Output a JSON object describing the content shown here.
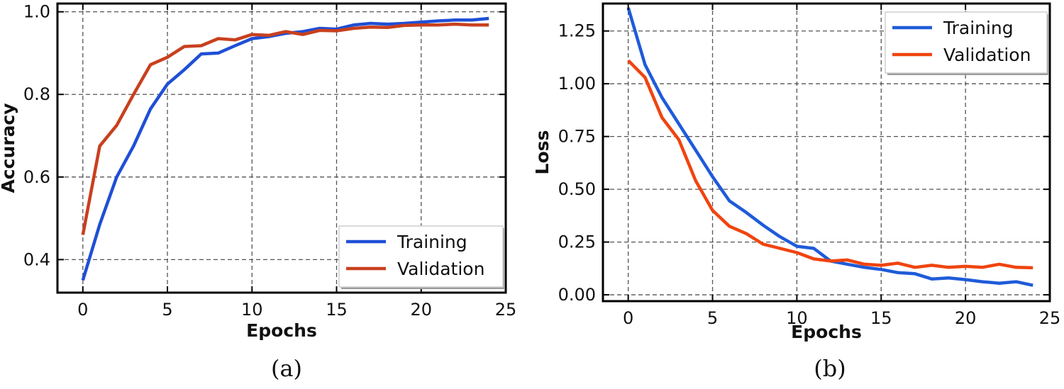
{
  "chart_data": [
    {
      "type": "line",
      "panel": "(a)",
      "xlabel": "Epochs",
      "ylabel": "Accuracy",
      "xlim": [
        -1.5,
        25
      ],
      "ylim": [
        0.32,
        1.02
      ],
      "xticks": [
        0,
        5,
        10,
        15,
        20,
        25
      ],
      "yticks": [
        0.4,
        0.6,
        0.8,
        1.0
      ],
      "ytick_labels": [
        "0.4",
        "0.6",
        "0.8",
        "1.0"
      ],
      "legend_position": "lower-right",
      "x": [
        0,
        1,
        2,
        3,
        4,
        5,
        6,
        7,
        8,
        9,
        10,
        11,
        12,
        13,
        14,
        15,
        16,
        17,
        18,
        19,
        20,
        21,
        22,
        23,
        24
      ],
      "series": [
        {
          "name": "Training",
          "color": "#1f4fd6",
          "values": [
            0.35,
            0.485,
            0.6,
            0.675,
            0.765,
            0.825,
            0.86,
            0.898,
            0.9,
            0.918,
            0.935,
            0.94,
            0.948,
            0.952,
            0.96,
            0.958,
            0.968,
            0.972,
            0.97,
            0.972,
            0.975,
            0.978,
            0.98,
            0.98,
            0.984
          ]
        },
        {
          "name": "Validation",
          "color": "#c8401e",
          "values": [
            0.46,
            0.675,
            0.725,
            0.8,
            0.872,
            0.89,
            0.916,
            0.918,
            0.935,
            0.932,
            0.945,
            0.943,
            0.952,
            0.945,
            0.955,
            0.954,
            0.96,
            0.963,
            0.962,
            0.967,
            0.968,
            0.968,
            0.97,
            0.968,
            0.968
          ]
        }
      ]
    },
    {
      "type": "line",
      "panel": "(b)",
      "xlabel": "Epochs",
      "ylabel": "Loss",
      "xlim": [
        -1.5,
        25
      ],
      "ylim": [
        -0.03,
        1.38
      ],
      "xticks": [
        0,
        5,
        10,
        15,
        20,
        25
      ],
      "yticks": [
        0.0,
        0.25,
        0.5,
        0.75,
        1.0,
        1.25
      ],
      "ytick_labels": [
        "0.00",
        "0.25",
        "0.50",
        "0.75",
        "1.00",
        "1.25"
      ],
      "legend_position": "upper-right",
      "x": [
        0,
        1,
        2,
        3,
        4,
        5,
        6,
        7,
        8,
        9,
        10,
        11,
        12,
        13,
        14,
        15,
        16,
        17,
        18,
        19,
        20,
        21,
        22,
        23,
        24
      ],
      "series": [
        {
          "name": "Training",
          "color": "#1f5bd9",
          "values": [
            1.36,
            1.09,
            0.935,
            0.81,
            0.685,
            0.56,
            0.445,
            0.39,
            0.33,
            0.275,
            0.23,
            0.22,
            0.16,
            0.145,
            0.13,
            0.12,
            0.105,
            0.1,
            0.075,
            0.08,
            0.072,
            0.062,
            0.055,
            0.062,
            0.045
          ]
        },
        {
          "name": "Validation",
          "color": "#f0440f",
          "values": [
            1.11,
            1.03,
            0.84,
            0.735,
            0.54,
            0.4,
            0.325,
            0.29,
            0.24,
            0.22,
            0.2,
            0.17,
            0.16,
            0.165,
            0.145,
            0.14,
            0.15,
            0.13,
            0.14,
            0.13,
            0.135,
            0.13,
            0.145,
            0.13,
            0.128
          ]
        }
      ]
    }
  ]
}
